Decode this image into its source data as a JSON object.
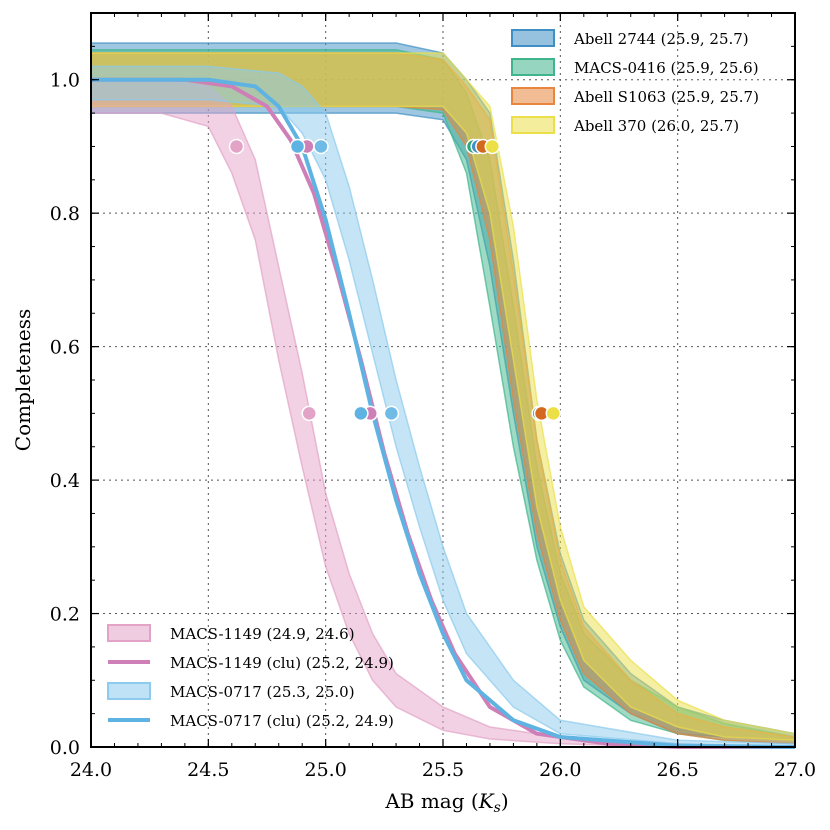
{
  "chart_data": {
    "type": "line",
    "xlabel": "AB mag",
    "xlabel_band": "K",
    "xlabel_band_sub": "s",
    "ylabel": "Completeness",
    "xlim": [
      24.0,
      27.0
    ],
    "ylim": [
      0.0,
      1.1
    ],
    "x_ticks": [
      24.0,
      24.5,
      25.0,
      25.5,
      26.0,
      26.5,
      27.0
    ],
    "x_tick_labels": [
      "24.0",
      "24.5",
      "25.0",
      "25.5",
      "26.0",
      "26.5",
      "27.0"
    ],
    "y_ticks": [
      0.0,
      0.2,
      0.4,
      0.6,
      0.8,
      1.0
    ],
    "y_tick_labels": [
      "0.0",
      "0.2",
      "0.4",
      "0.6",
      "0.8",
      "1.0"
    ],
    "grid": true,
    "bands": [
      {
        "name": "Abell 2744 (25.9, 25.7)",
        "color": "#3f8fc4",
        "x": [
          24.0,
          24.5,
          25.0,
          25.3,
          25.5,
          25.6,
          25.7,
          25.8,
          25.9,
          26.0,
          26.1,
          26.3,
          26.5,
          26.7,
          27.0
        ],
        "lower": [
          0.95,
          0.95,
          0.95,
          0.95,
          0.94,
          0.88,
          0.72,
          0.5,
          0.3,
          0.18,
          0.1,
          0.05,
          0.02,
          0.015,
          0.01
        ],
        "upper": [
          1.055,
          1.055,
          1.055,
          1.055,
          1.04,
          1.0,
          0.95,
          0.73,
          0.46,
          0.29,
          0.19,
          0.11,
          0.06,
          0.04,
          0.02
        ]
      },
      {
        "name": "MACS-0416 (25.9, 25.6)",
        "color": "#3fb58c",
        "x": [
          24.0,
          24.5,
          25.0,
          25.3,
          25.5,
          25.6,
          25.7,
          25.8,
          25.9,
          26.0,
          26.1,
          26.3,
          26.5,
          26.7,
          27.0
        ],
        "lower": [
          0.96,
          0.96,
          0.96,
          0.96,
          0.95,
          0.86,
          0.66,
          0.45,
          0.28,
          0.16,
          0.09,
          0.04,
          0.02,
          0.01,
          0.005
        ],
        "upper": [
          1.045,
          1.045,
          1.045,
          1.045,
          1.03,
          0.98,
          0.88,
          0.66,
          0.42,
          0.26,
          0.17,
          0.1,
          0.06,
          0.035,
          0.015
        ]
      },
      {
        "name": "Abell S1063 (25.9, 25.7)",
        "color": "#e8853e",
        "x": [
          24.0,
          24.5,
          25.0,
          25.3,
          25.5,
          25.6,
          25.7,
          25.8,
          25.9,
          26.0,
          26.1,
          26.3,
          26.5,
          26.7,
          27.0
        ],
        "lower": [
          0.96,
          0.96,
          0.96,
          0.96,
          0.955,
          0.9,
          0.76,
          0.52,
          0.32,
          0.19,
          0.11,
          0.05,
          0.02,
          0.01,
          0.005
        ],
        "upper": [
          1.04,
          1.04,
          1.04,
          1.04,
          1.03,
          0.99,
          0.94,
          0.71,
          0.46,
          0.28,
          0.18,
          0.1,
          0.05,
          0.03,
          0.015
        ]
      },
      {
        "name": "Abell 370 (26.0, 25.7)",
        "color": "#ebe04a",
        "x": [
          24.0,
          24.5,
          25.0,
          25.3,
          25.5,
          25.6,
          25.7,
          25.8,
          25.9,
          26.0,
          26.1,
          26.3,
          26.5,
          26.7,
          27.0
        ],
        "lower": [
          0.96,
          0.96,
          0.96,
          0.96,
          0.96,
          0.92,
          0.8,
          0.58,
          0.36,
          0.22,
          0.13,
          0.06,
          0.03,
          0.015,
          0.01
        ],
        "upper": [
          1.04,
          1.04,
          1.04,
          1.04,
          1.04,
          1.0,
          0.96,
          0.78,
          0.52,
          0.33,
          0.21,
          0.13,
          0.07,
          0.04,
          0.02
        ]
      },
      {
        "name": "MACS-1149 (24.9, 24.6)",
        "color": "#e3a3c7",
        "x": [
          24.0,
          24.3,
          24.5,
          24.6,
          24.7,
          24.8,
          24.9,
          25.0,
          25.1,
          25.2,
          25.3,
          25.5,
          25.7,
          26.0,
          26.5,
          27.0
        ],
        "lower": [
          0.95,
          0.95,
          0.93,
          0.86,
          0.76,
          0.58,
          0.42,
          0.27,
          0.17,
          0.1,
          0.06,
          0.025,
          0.012,
          0.005,
          0.0,
          0.0
        ],
        "upper": [
          1.0,
          1.0,
          0.99,
          0.96,
          0.88,
          0.72,
          0.56,
          0.38,
          0.26,
          0.17,
          0.11,
          0.06,
          0.03,
          0.015,
          0.005,
          0.0
        ]
      },
      {
        "name": "MACS-0717 (25.3, 25.0)",
        "color": "#8ccbee",
        "x": [
          24.0,
          24.5,
          24.8,
          24.9,
          25.0,
          25.1,
          25.2,
          25.3,
          25.4,
          25.5,
          25.6,
          25.8,
          26.0,
          26.5,
          27.0
        ],
        "lower": [
          0.97,
          0.97,
          0.96,
          0.92,
          0.85,
          0.73,
          0.59,
          0.45,
          0.33,
          0.22,
          0.14,
          0.06,
          0.02,
          0.005,
          0.0
        ],
        "upper": [
          1.02,
          1.02,
          1.01,
          0.99,
          0.95,
          0.84,
          0.7,
          0.55,
          0.42,
          0.3,
          0.2,
          0.1,
          0.04,
          0.01,
          0.005
        ]
      }
    ],
    "lines": [
      {
        "name": "MACS-1149 (clu) (25.2, 24.9)",
        "color": "#cf7fb7",
        "x": [
          24.0,
          24.4,
          24.6,
          24.75,
          24.85,
          24.95,
          25.05,
          25.15,
          25.25,
          25.35,
          25.45,
          25.55,
          25.7,
          25.9,
          26.2,
          26.5,
          27.0
        ],
        "y": [
          1.0,
          1.0,
          0.99,
          0.96,
          0.91,
          0.83,
          0.71,
          0.58,
          0.44,
          0.32,
          0.22,
          0.14,
          0.06,
          0.02,
          0.005,
          0.0,
          0.0
        ]
      },
      {
        "name": "MACS-0717 (clu) (25.2, 24.9)",
        "color": "#5fb3e3",
        "x": [
          24.0,
          24.5,
          24.7,
          24.8,
          24.9,
          25.0,
          25.1,
          25.2,
          25.3,
          25.4,
          25.5,
          25.6,
          25.8,
          26.0,
          26.5,
          27.0
        ],
        "y": [
          1.0,
          1.0,
          0.99,
          0.96,
          0.9,
          0.79,
          0.65,
          0.5,
          0.37,
          0.26,
          0.17,
          0.1,
          0.04,
          0.015,
          0.002,
          0.0
        ]
      }
    ],
    "points": [
      {
        "x": 24.62,
        "y": 0.9,
        "color": "#e3a3c7"
      },
      {
        "x": 24.93,
        "y": 0.5,
        "color": "#e3a3c7"
      },
      {
        "x": 24.92,
        "y": 0.9,
        "color": "#cf7fb7"
      },
      {
        "x": 25.19,
        "y": 0.5,
        "color": "#cf7fb7"
      },
      {
        "x": 24.88,
        "y": 0.9,
        "color": "#5fb3e3"
      },
      {
        "x": 25.15,
        "y": 0.5,
        "color": "#5fb3e3"
      },
      {
        "x": 24.98,
        "y": 0.9,
        "color": "#6fbbe6"
      },
      {
        "x": 25.28,
        "y": 0.5,
        "color": "#6fbbe6"
      },
      {
        "x": 25.63,
        "y": 0.9,
        "color": "#2fa57a"
      },
      {
        "x": 25.91,
        "y": 0.5,
        "color": "#2fa57a"
      },
      {
        "x": 25.65,
        "y": 0.9,
        "color": "#3f8fc4"
      },
      {
        "x": 25.93,
        "y": 0.5,
        "color": "#3f8fc4"
      },
      {
        "x": 25.67,
        "y": 0.9,
        "color": "#d2691e"
      },
      {
        "x": 25.92,
        "y": 0.5,
        "color": "#d2691e"
      },
      {
        "x": 25.71,
        "y": 0.9,
        "color": "#ece046"
      },
      {
        "x": 25.97,
        "y": 0.5,
        "color": "#ece046"
      }
    ],
    "legend_top_right": [
      {
        "label": "Abell 2744 (25.9, 25.7)",
        "kind": "patch",
        "color": "#3f8fc4"
      },
      {
        "label": "MACS-0416 (25.9, 25.6)",
        "kind": "patch",
        "color": "#3fb58c"
      },
      {
        "label": "Abell S1063 (25.9, 25.7)",
        "kind": "patch",
        "color": "#e8853e"
      },
      {
        "label": "Abell 370 (26.0, 25.7)",
        "kind": "patch",
        "color": "#ebe04a"
      }
    ],
    "legend_bottom_left": [
      {
        "label": "MACS-1149 (24.9, 24.6)",
        "kind": "patch",
        "color": "#e3a3c7"
      },
      {
        "label": "MACS-1149 (clu) (25.2, 24.9)",
        "kind": "line",
        "color": "#cf7fb7"
      },
      {
        "label": "MACS-0717 (25.3, 25.0)",
        "kind": "patch",
        "color": "#8ccbee"
      },
      {
        "label": "MACS-0717 (clu) (25.2, 24.9)",
        "kind": "line",
        "color": "#5fb3e3"
      }
    ]
  }
}
